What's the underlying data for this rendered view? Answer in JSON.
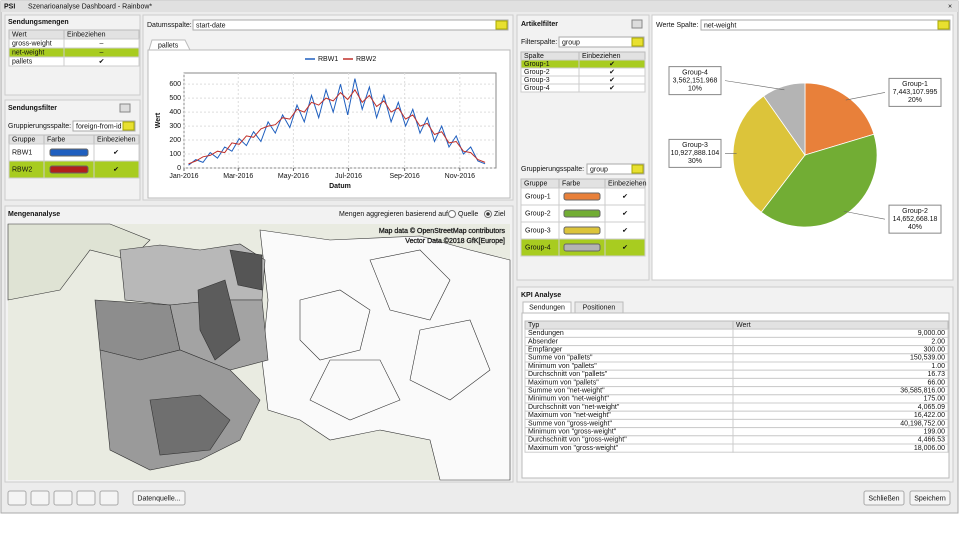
{
  "window": {
    "logo": "PSI",
    "title": "Szenarioanalyse Dashboard - Rainbow*"
  },
  "sendungsmengen": {
    "title": "Sendungsmengen",
    "headers": [
      "Wert",
      "Einbeziehen"
    ],
    "rows": [
      [
        "gross-weight",
        "–"
      ],
      [
        "net-weight",
        "–"
      ],
      [
        "pallets",
        "✔"
      ]
    ],
    "selected_row": 1
  },
  "sendungsfilter": {
    "title": "Sendungsfilter",
    "label": "Gruppierungsspalte:",
    "value": "foreign-from-id",
    "headers": [
      "Gruppe",
      "Farbe",
      "Einbeziehen"
    ],
    "rows": [
      {
        "name": "RBW1",
        "color": "#1f5fbf",
        "include": "✔"
      },
      {
        "name": "RBW2",
        "color": "#b0201c",
        "include": "✔"
      }
    ],
    "selected_row": 1
  },
  "datumsspalte": {
    "label": "Datumsspalte:",
    "value": "start-date",
    "tab": "pallets"
  },
  "chart_data": [
    {
      "type": "line",
      "xlabel": "Datum",
      "ylabel": "Wert",
      "x": [
        5,
        13,
        21,
        29,
        37,
        45,
        53,
        61,
        69,
        77,
        85,
        93,
        101,
        109,
        117,
        125,
        133,
        141,
        149,
        157,
        165,
        173,
        181,
        189,
        197,
        205,
        213,
        221,
        229,
        237,
        245,
        253,
        261,
        269,
        277,
        285,
        293,
        301,
        309,
        317,
        325,
        333
      ],
      "xlim": [
        0,
        345
      ],
      "xticks": [
        {
          "value": 0,
          "label": "Jan-2016"
        },
        {
          "value": 60,
          "label": "Mar-2016"
        },
        {
          "value": 121,
          "label": "May-2016"
        },
        {
          "value": 182,
          "label": "Jul-2016"
        },
        {
          "value": 244,
          "label": "Sep-2016"
        },
        {
          "value": 305,
          "label": "Nov-2016"
        }
      ],
      "ylim": [
        0,
        680
      ],
      "yticks": [
        0,
        100,
        200,
        300,
        400,
        500,
        600
      ],
      "grid": true,
      "series": [
        {
          "name": "RBW1",
          "color": "#1f5fbf",
          "values": [
            20,
            60,
            40,
            110,
            70,
            150,
            120,
            210,
            160,
            260,
            190,
            330,
            250,
            380,
            290,
            450,
            330,
            520,
            360,
            560,
            400,
            600,
            380,
            640,
            420,
            580,
            360,
            520,
            330,
            470,
            300,
            420,
            250,
            360,
            190,
            300,
            150,
            230,
            100,
            150,
            50,
            30
          ]
        },
        {
          "name": "RBW2",
          "color": "#c0302a",
          "values": [
            30,
            50,
            80,
            90,
            120,
            110,
            180,
            170,
            230,
            220,
            280,
            300,
            310,
            360,
            350,
            420,
            400,
            470,
            450,
            500,
            480,
            540,
            490,
            560,
            470,
            520,
            440,
            480,
            400,
            430,
            350,
            380,
            300,
            320,
            240,
            260,
            180,
            190,
            120,
            110,
            60,
            40
          ]
        }
      ]
    },
    {
      "type": "pie",
      "categories": [
        "Group-1",
        "Group-2",
        "Group-3",
        "Group-4"
      ],
      "values": [
        7443107.995,
        14652668.18,
        10927888.104,
        3562151.968
      ],
      "value_labels": [
        "7,443,107.995",
        "14,652,668.18",
        "10,927,888.104",
        "3,562,151.968"
      ],
      "percent_labels": [
        "20%",
        "40%",
        "30%",
        "10%"
      ],
      "colors": [
        "#e8803a",
        "#72ad34",
        "#dcc43a",
        "#b4b4b4"
      ]
    }
  ],
  "mengenanalyse": {
    "title": "Mengenanalyse",
    "label": "Mengen aggregieren basierend auf:",
    "options": [
      "Quelle",
      "Ziel"
    ],
    "selected_option": 1,
    "attribution": [
      "Map data © OpenStreetMap contributors",
      "Vector Data ©2018 GfK[Europe]"
    ]
  },
  "artikelfilter": {
    "title": "Artikelfilter",
    "label": "Filterspalte:",
    "value": "group",
    "headers": [
      "Spalte",
      "Einbeziehen"
    ],
    "rows": [
      [
        "Group-1",
        "✔"
      ],
      [
        "Group-2",
        "✔"
      ],
      [
        "Group-3",
        "✔"
      ],
      [
        "Group-4",
        "✔"
      ]
    ],
    "selected_row": 0
  },
  "gruppierung": {
    "label": "Gruppierungsspalte:",
    "value": "group",
    "headers": [
      "Gruppe",
      "Farbe",
      "Einbeziehen"
    ],
    "rows": [
      {
        "name": "Group-1",
        "color": "#e8803a",
        "include": "✔"
      },
      {
        "name": "Group-2",
        "color": "#72ad34",
        "include": "✔"
      },
      {
        "name": "Group-3",
        "color": "#dcc43a",
        "include": "✔"
      },
      {
        "name": "Group-4",
        "color": "#b4b4b4",
        "include": "✔"
      }
    ],
    "selected_row": 3
  },
  "werte": {
    "label": "Werte Spalte:",
    "value": "net-weight"
  },
  "kpi": {
    "title": "KPI Analyse",
    "tabs": [
      "Sendungen",
      "Positionen"
    ],
    "headers": [
      "Typ",
      "Wert"
    ],
    "rows": [
      [
        "Sendungen",
        "9,000.00"
      ],
      [
        "Absender",
        "2.00"
      ],
      [
        "Empfänger",
        "300.00"
      ],
      [
        "Summe von \"pallets\"",
        "150,539.00"
      ],
      [
        "Minimum von \"pallets\"",
        "1.00"
      ],
      [
        "Durchschnitt von \"pallets\"",
        "16.73"
      ],
      [
        "Maximum von \"pallets\"",
        "66.00"
      ],
      [
        "Summe von \"net-weight\"",
        "36,585,816.00"
      ],
      [
        "Minimum von \"net-weight\"",
        "175.00"
      ],
      [
        "Durchschnitt von \"net-weight\"",
        "4,065.09"
      ],
      [
        "Maximum von \"net-weight\"",
        "16,422.00"
      ],
      [
        "Summe von \"gross-weight\"",
        "40,198,752.00"
      ],
      [
        "Minimum von \"gross-weight\"",
        "199.00"
      ],
      [
        "Durchschnitt von \"gross-weight\"",
        "4,466.53"
      ],
      [
        "Maximum von \"gross-weight\"",
        "18,006.00"
      ]
    ]
  },
  "buttons": {
    "datenquelle": "Datenquelle...",
    "close": "Schließen",
    "save": "Speichern"
  }
}
